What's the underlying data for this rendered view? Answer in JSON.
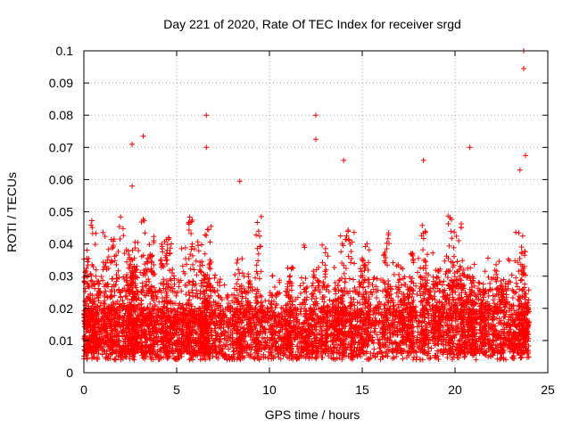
{
  "chart_data": {
    "type": "scatter",
    "title": "Day 221 of 2020, Rate Of TEC Index for receiver srgd",
    "xlabel": "GPS time / hours",
    "ylabel": "ROTI / TECUs",
    "xlim": [
      0,
      25
    ],
    "ylim": [
      0,
      0.1
    ],
    "xticks": [
      "0",
      "5",
      "10",
      "15",
      "20",
      "25"
    ],
    "yticks": [
      "0",
      "0.01",
      "0.02",
      "0.03",
      "0.04",
      "0.05",
      "0.06",
      "0.07",
      "0.08",
      "0.09",
      "0.1"
    ],
    "grid": true,
    "marker": "+",
    "color": "#ff0000",
    "series": [
      {
        "x": [
          0.1,
          0.2,
          0.3,
          0.5,
          0.8,
          1.2,
          1.5,
          1.6,
          2.0,
          2.3,
          2.6,
          2.6,
          2.7,
          2.8,
          3.2,
          3.4,
          3.7,
          4.3,
          4.6,
          5.0,
          5.4,
          5.8,
          6.2,
          6.4,
          6.5,
          6.6,
          6.6,
          6.7,
          7.2,
          8.4,
          8.8,
          9.4,
          10.2,
          11.0,
          11.1,
          12.0,
          12.4,
          12.5,
          13.0,
          13.6,
          13.9,
          14.0,
          14.4,
          15.0,
          15.2,
          16.3,
          17.1,
          17.6,
          18.3,
          18.4,
          19.0,
          19.6,
          19.8,
          20.2,
          20.4,
          20.8,
          21.0,
          21.5,
          22.1,
          22.6,
          23.0,
          23.4,
          23.6,
          23.7,
          23.8
        ]
      }
    ],
    "sampled_points": {
      "x": [
        0.1,
        2.6,
        2.6,
        3.2,
        6.6,
        6.6,
        8.4,
        12.5,
        12.5,
        14.0,
        18.3,
        20.8,
        23.7,
        23.7,
        23.8,
        23.5
      ],
      "y": [
        0.03,
        0.071,
        0.058,
        0.0735,
        0.08,
        0.07,
        0.0595,
        0.08,
        0.0725,
        0.066,
        0.066,
        0.07,
        0.1,
        0.0945,
        0.0675,
        0.063
      ]
    }
  }
}
